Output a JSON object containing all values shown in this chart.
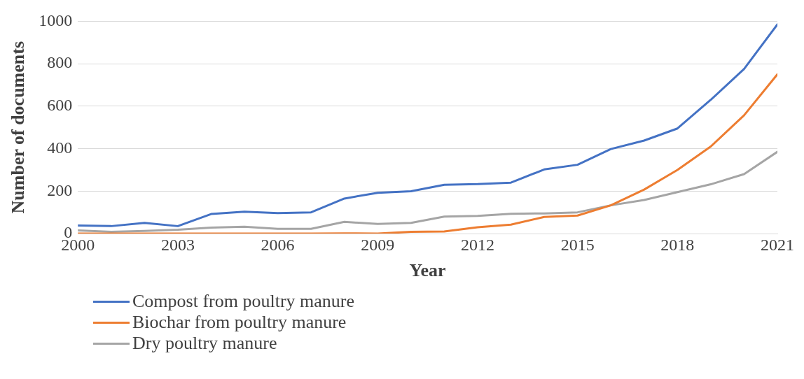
{
  "chart_data": {
    "type": "line",
    "xlabel": "Year",
    "ylabel": "Number of documents",
    "x": [
      2000,
      2001,
      2002,
      2003,
      2004,
      2005,
      2006,
      2007,
      2008,
      2009,
      2010,
      2011,
      2012,
      2013,
      2014,
      2015,
      2016,
      2017,
      2018,
      2019,
      2020,
      2021
    ],
    "series": [
      {
        "name": "Compost from poultry manure",
        "color": "#4472c4",
        "values": [
          38,
          35,
          50,
          35,
          92,
          103,
          96,
          100,
          165,
          192,
          199,
          230,
          233,
          240,
          302,
          324,
          398,
          438,
          495,
          630,
          775,
          985
        ]
      },
      {
        "name": "Biochar from poultry manure",
        "color": "#ed7d31",
        "values": [
          0,
          0,
          0,
          0,
          0,
          0,
          0,
          0,
          1,
          0,
          8,
          10,
          30,
          42,
          78,
          85,
          133,
          207,
          300,
          410,
          557,
          750
        ]
      },
      {
        "name": "Dry poultry manure",
        "color": "#a5a5a5",
        "values": [
          15,
          8,
          12,
          18,
          28,
          32,
          22,
          22,
          55,
          45,
          50,
          80,
          83,
          93,
          95,
          100,
          133,
          158,
          195,
          232,
          280,
          385
        ]
      }
    ],
    "xlim": [
      2000,
      2021
    ],
    "xticks": [
      2000,
      2003,
      2006,
      2009,
      2012,
      2015,
      2018,
      2021
    ],
    "ylim": [
      0,
      1000
    ],
    "yticks": [
      0,
      200,
      400,
      600,
      800,
      1000
    ],
    "grid": "y",
    "legend": "bottom",
    "marker": "none",
    "line_style": "solid"
  }
}
